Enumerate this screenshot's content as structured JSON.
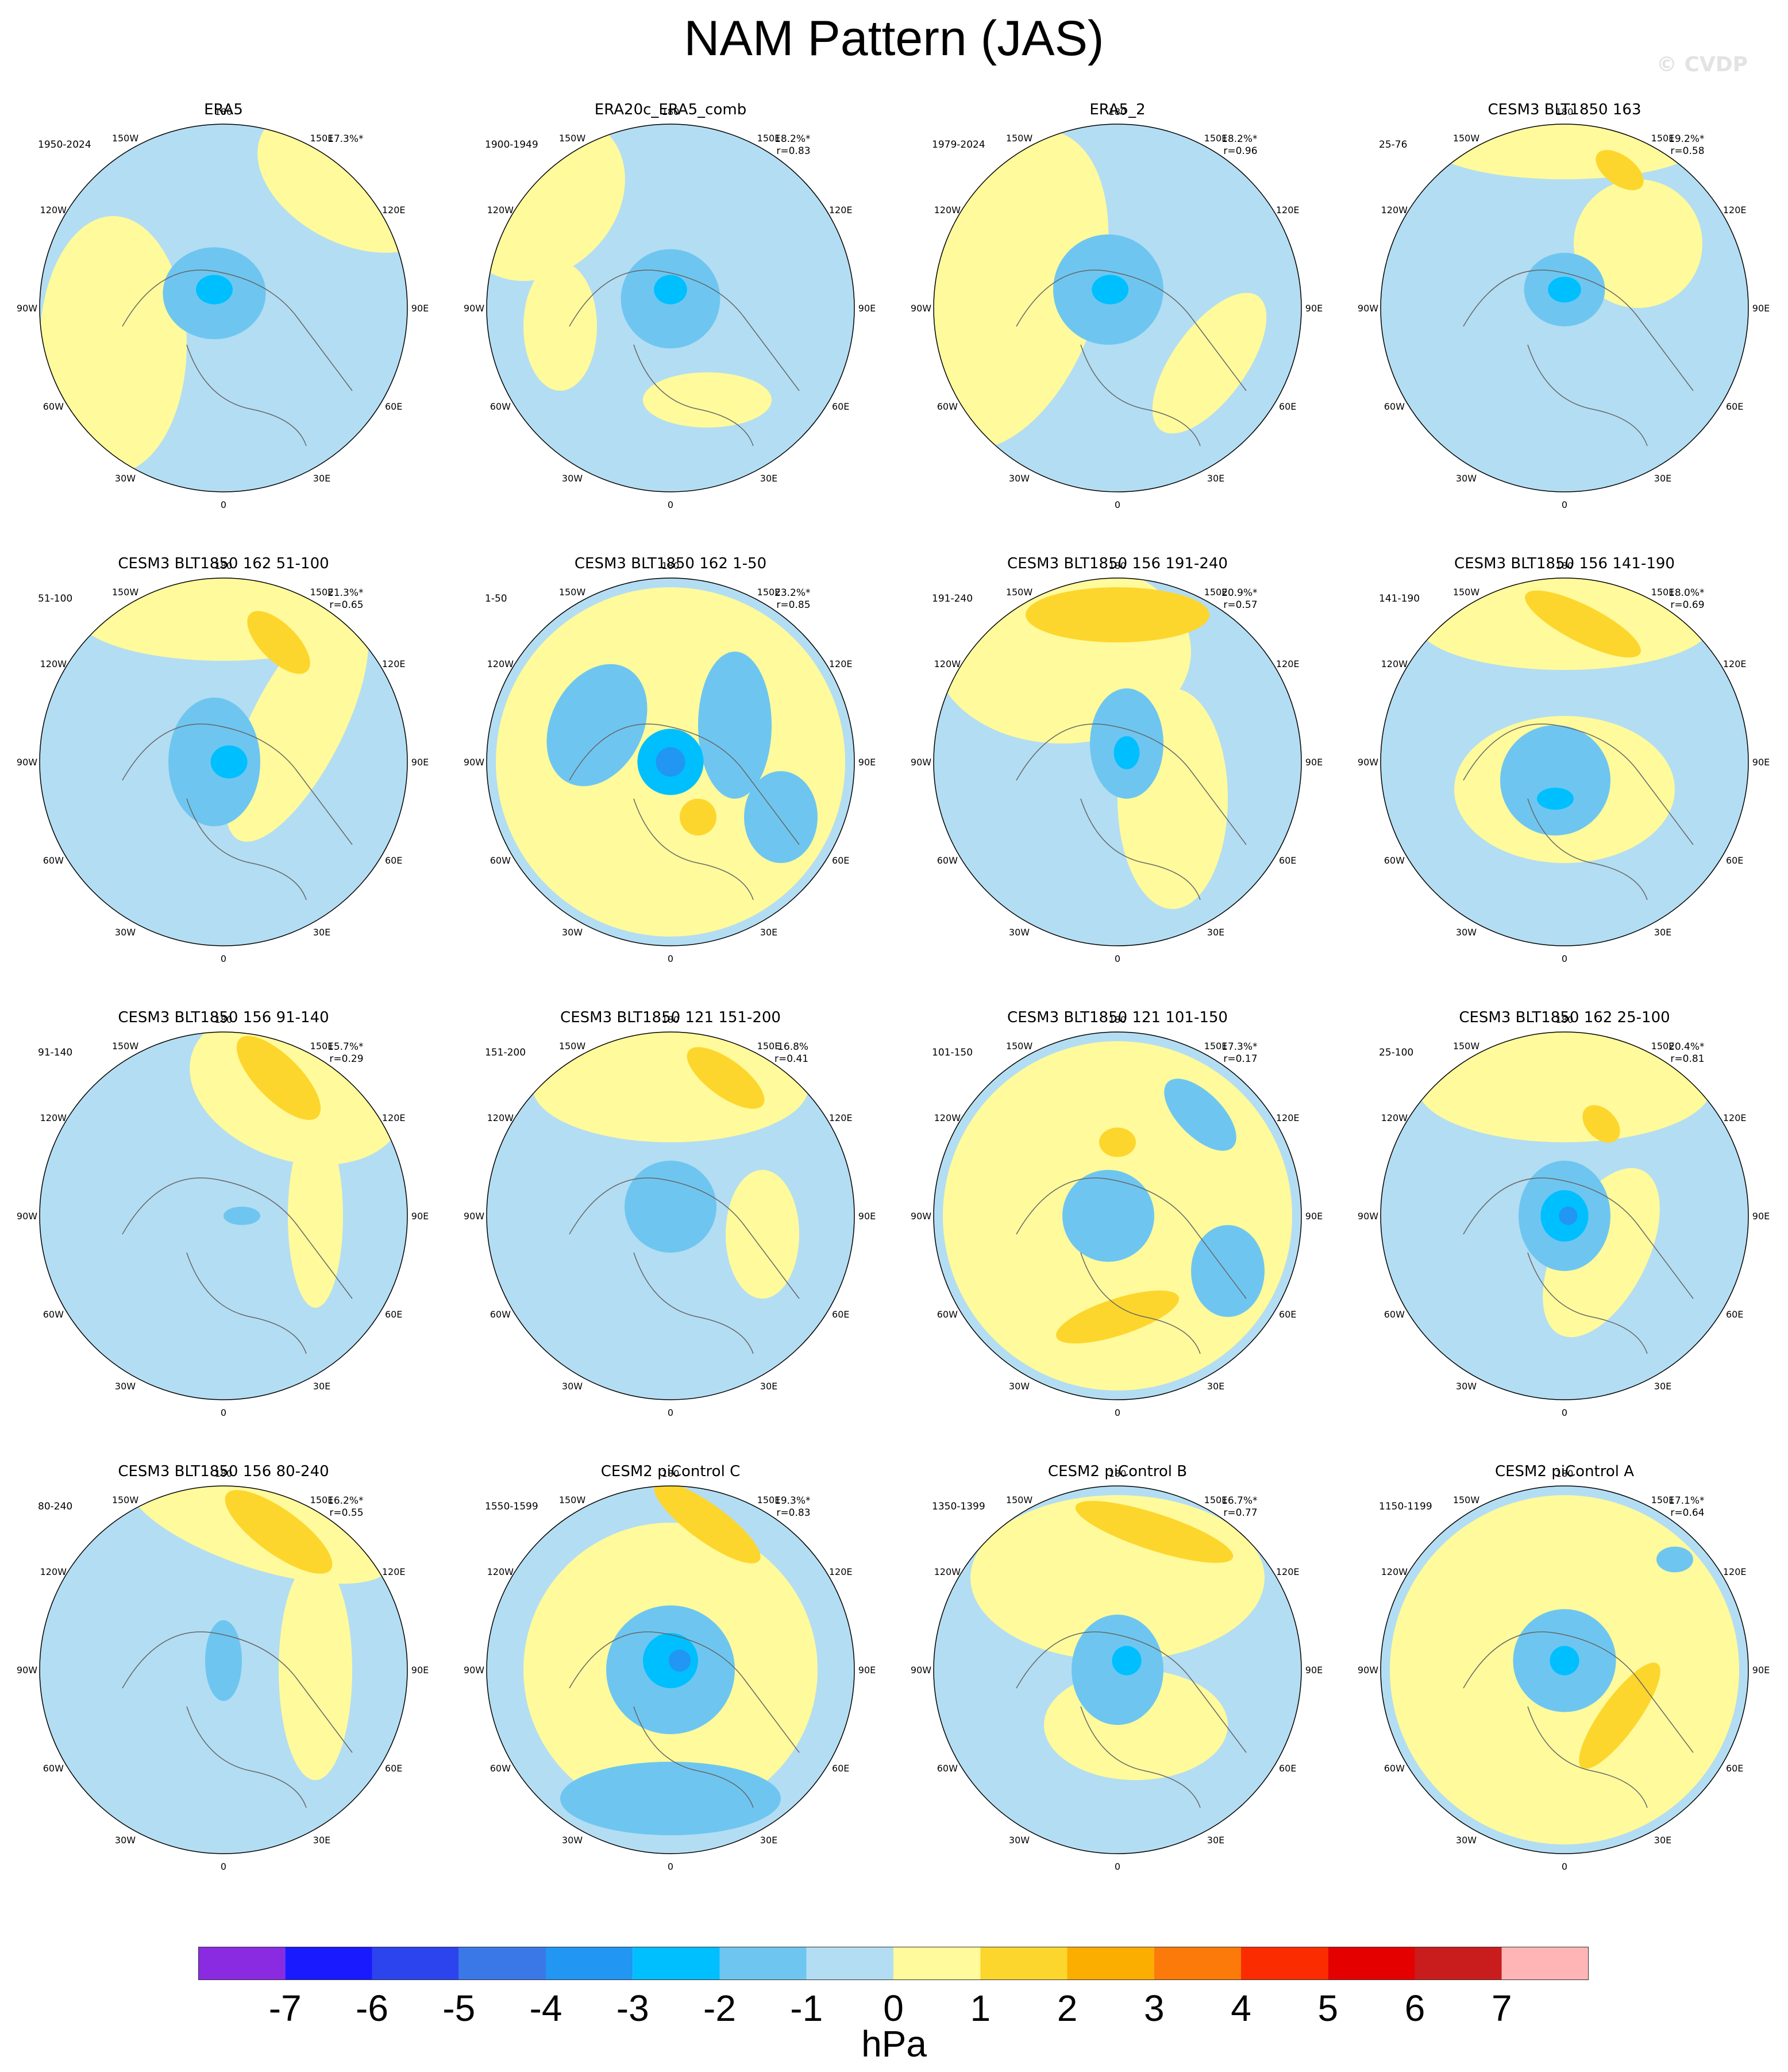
{
  "title": "NAM Pattern (JAS)",
  "watermark": "© CVDP",
  "units": "hPa",
  "colors": {
    "ocean_base": "#b3ddf2",
    "land_line": "#666666",
    "levels": [
      "#8a2be2",
      "#1a1aff",
      "#2b44ee",
      "#3a78e8",
      "#2196f3",
      "#00bfff",
      "#6ec6f0",
      "#b3ddf2",
      "#fffa9c",
      "#fdd62d",
      "#fbae00",
      "#fb7a0a",
      "#fb2d00",
      "#e50000",
      "#c91d1d",
      "#ffb5b5"
    ]
  },
  "colorbar": {
    "ticks": [
      "-7",
      "-6",
      "-5",
      "-4",
      "-3",
      "-2",
      "-1",
      "0",
      "1",
      "2",
      "3",
      "4",
      "5",
      "6",
      "7"
    ]
  },
  "lon_labels": [
    "180",
    "150E",
    "120E",
    "90E",
    "60E",
    "30E",
    "0",
    "30W",
    "60W",
    "90W",
    "120W",
    "150W"
  ],
  "chart_data": {
    "type": "map",
    "projection": "polar stereographic (Northern Hemisphere)",
    "variable": "NAM pattern regression",
    "season": "JAS",
    "colorbar_range": [
      -7,
      7
    ],
    "panels": [
      {
        "title": "ERA5",
        "period": "1950-2024",
        "pct": "17.3%*",
        "r": ""
      },
      {
        "title": "ERA20c_ERA5_comb",
        "period": "1900-1949",
        "pct": "18.2%*",
        "r": "r=0.83"
      },
      {
        "title": "ERA5_2",
        "period": "1979-2024",
        "pct": "18.2%*",
        "r": "r=0.96"
      },
      {
        "title": "CESM3 BLT1850 163",
        "period": "25-76",
        "pct": "19.2%*",
        "r": "r=0.58"
      },
      {
        "title": "CESM3 BLT1850 162 51-100",
        "period": "51-100",
        "pct": "21.3%*",
        "r": "r=0.65"
      },
      {
        "title": "CESM3 BLT1850 162 1-50",
        "period": "1-50",
        "pct": "23.2%*",
        "r": "r=0.85"
      },
      {
        "title": "CESM3 BLT1850 156 191-240",
        "period": "191-240",
        "pct": "20.9%*",
        "r": "r=0.57"
      },
      {
        "title": "CESM3 BLT1850 156 141-190",
        "period": "141-190",
        "pct": "18.0%*",
        "r": "r=0.69"
      },
      {
        "title": "CESM3 BLT1850 156 91-140",
        "period": "91-140",
        "pct": "15.7%*",
        "r": "r=0.29"
      },
      {
        "title": "CESM3 BLT1850 121 151-200",
        "period": "151-200",
        "pct": "16.8%",
        "r": "r=0.41"
      },
      {
        "title": "CESM3 BLT1850 121 101-150",
        "period": "101-150",
        "pct": "17.3%*",
        "r": "r=0.17"
      },
      {
        "title": "CESM3 BLT1850 162 25-100",
        "period": "25-100",
        "pct": "20.4%*",
        "r": "r=0.81"
      },
      {
        "title": "CESM3 BLT1850 156 80-240",
        "period": "80-240",
        "pct": "16.2%*",
        "r": "r=0.55"
      },
      {
        "title": "CESM2 piControl C",
        "period": "1550-1599",
        "pct": "19.3%*",
        "r": "r=0.83"
      },
      {
        "title": "CESM2 piControl B",
        "period": "1350-1399",
        "pct": "16.7%*",
        "r": "r=0.77"
      },
      {
        "title": "CESM2 piControl A",
        "period": "1150-1199",
        "pct": "17.1%*",
        "r": "r=0.64"
      }
    ]
  }
}
